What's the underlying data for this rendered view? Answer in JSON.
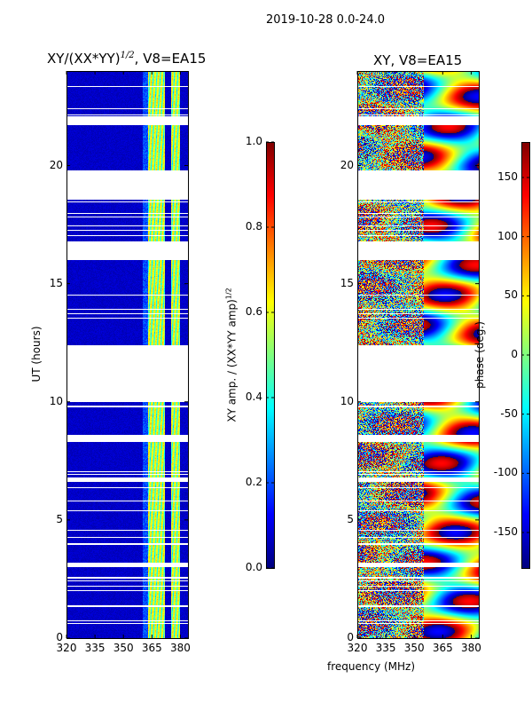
{
  "chart_data": [
    {
      "type": "heatmap",
      "suptitle": "2019-10-28 0.0-24.0",
      "title": "XY/(XX*YY)^1/2, V8=EA15",
      "title_main": "XY/(XX*YY)",
      "title_sup": "1/2",
      "title_tail": ", V8=EA15",
      "xlabel": "frequency (MHz)",
      "ylabel": "UT (hours)",
      "xlim": [
        320,
        384
      ],
      "ylim": [
        0,
        24
      ],
      "xticks": [
        "320",
        "335",
        "350",
        "365",
        "380"
      ],
      "yticks": [
        "0",
        "5",
        "10",
        "15",
        "20"
      ],
      "colorbar": {
        "label": "XY amp. / (XX*YY amp)",
        "label_sup": "1/2",
        "range": [
          0.0,
          1.0
        ],
        "ticks": [
          "0.0",
          "0.2",
          "0.4",
          "0.6",
          "0.8",
          "1.0"
        ],
        "colormap": "jet"
      },
      "bright_bands_mhz": [
        [
          363,
          372
        ],
        [
          375,
          380
        ]
      ],
      "background_value": 0.05
    },
    {
      "type": "heatmap",
      "title": "XY, V8=EA15",
      "xlabel": "frequency (MHz)",
      "ylabel": "",
      "xlim": [
        320,
        384
      ],
      "ylim": [
        0,
        24
      ],
      "xticks": [
        "320",
        "335",
        "350",
        "365",
        "380"
      ],
      "yticks": [
        "0",
        "5",
        "10",
        "15",
        "20"
      ],
      "colorbar": {
        "label": "phase (deg.)",
        "range": [
          -180,
          180
        ],
        "ticks": [
          "-150",
          "-100",
          "-50",
          "0",
          "50",
          "100",
          "150"
        ],
        "colormap": "jet"
      }
    }
  ],
  "data_gaps_ut_hours": [
    [
      21.7,
      22.1
    ],
    [
      18.6,
      19.8
    ],
    [
      16.0,
      16.8
    ],
    [
      10.0,
      12.4
    ],
    [
      8.3,
      8.6
    ],
    [
      6.6,
      6.8
    ],
    [
      3.0,
      3.2
    ],
    [
      1.3,
      1.4
    ]
  ]
}
